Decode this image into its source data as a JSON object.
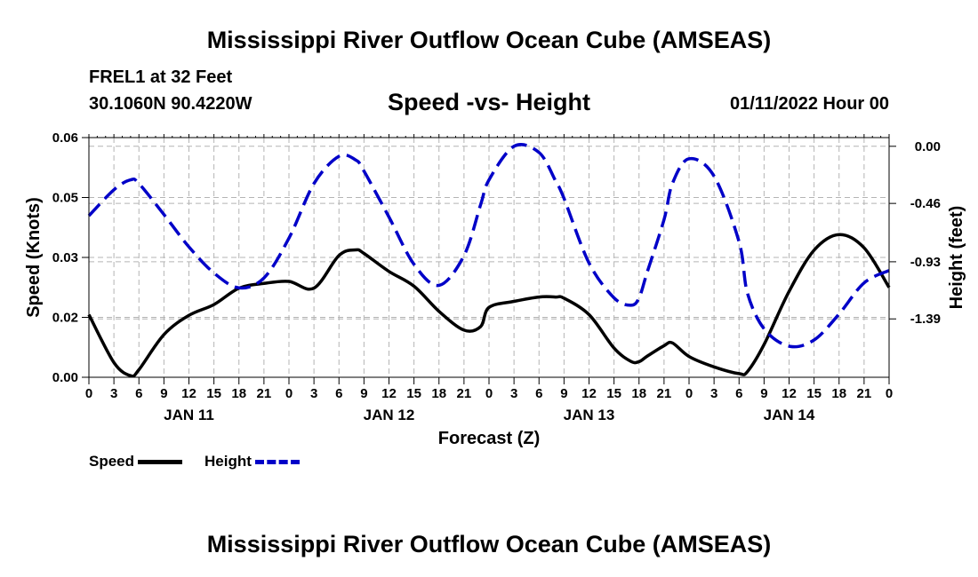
{
  "header": {
    "title": "Mississippi River Outflow Ocean Cube (AMSEAS)",
    "station": "FREL1 at 32 Feet",
    "coords": "30.1060N  90.4220W",
    "subtitle": "Speed -vs- Height",
    "datetime": "01/11/2022 Hour 00"
  },
  "footer": {
    "title": "Mississippi River Outflow Ocean Cube (AMSEAS)"
  },
  "colors": {
    "speed": "#000000",
    "height": "#0000c8",
    "grid": "#b4b4b4"
  },
  "chart_data": {
    "type": "line",
    "title": "Speed -vs- Height",
    "xlabel": "Forecast (Z)",
    "ylabel": "Speed (Knots)",
    "y2label": "Height (feet)",
    "x_range": [
      0,
      96
    ],
    "ylim": [
      0,
      0.06
    ],
    "y2lim": [
      -1.86,
      0.07
    ],
    "xticks": [
      {
        "x": 0,
        "label": "0"
      },
      {
        "x": 3,
        "label": "3"
      },
      {
        "x": 6,
        "label": "6"
      },
      {
        "x": 9,
        "label": "9"
      },
      {
        "x": 12,
        "label": "12"
      },
      {
        "x": 15,
        "label": "15"
      },
      {
        "x": 18,
        "label": "18"
      },
      {
        "x": 21,
        "label": "21"
      },
      {
        "x": 24,
        "label": "0"
      },
      {
        "x": 27,
        "label": "3"
      },
      {
        "x": 30,
        "label": "6"
      },
      {
        "x": 33,
        "label": "9"
      },
      {
        "x": 36,
        "label": "12"
      },
      {
        "x": 39,
        "label": "15"
      },
      {
        "x": 42,
        "label": "18"
      },
      {
        "x": 45,
        "label": "21"
      },
      {
        "x": 48,
        "label": "0"
      },
      {
        "x": 51,
        "label": "3"
      },
      {
        "x": 54,
        "label": "6"
      },
      {
        "x": 57,
        "label": "9"
      },
      {
        "x": 60,
        "label": "12"
      },
      {
        "x": 63,
        "label": "15"
      },
      {
        "x": 66,
        "label": "18"
      },
      {
        "x": 69,
        "label": "21"
      },
      {
        "x": 72,
        "label": "0"
      },
      {
        "x": 75,
        "label": "3"
      },
      {
        "x": 78,
        "label": "6"
      },
      {
        "x": 81,
        "label": "9"
      },
      {
        "x": 84,
        "label": "12"
      },
      {
        "x": 87,
        "label": "15"
      },
      {
        "x": 90,
        "label": "18"
      },
      {
        "x": 93,
        "label": "21"
      },
      {
        "x": 96,
        "label": "0"
      }
    ],
    "day_labels": [
      {
        "x": 12,
        "label": "JAN 11"
      },
      {
        "x": 36,
        "label": "JAN 12"
      },
      {
        "x": 60,
        "label": "JAN 13"
      },
      {
        "x": 84,
        "label": "JAN 14"
      }
    ],
    "yticks": [
      {
        "v": 0.0,
        "label": "0.00"
      },
      {
        "v": 0.015,
        "label": "0.02"
      },
      {
        "v": 0.03,
        "label": "0.03"
      },
      {
        "v": 0.045,
        "label": "0.05"
      },
      {
        "v": 0.06,
        "label": "0.06"
      }
    ],
    "y2ticks": [
      {
        "v": 0.0,
        "label": "0.00"
      },
      {
        "v": -0.46,
        "label": "-0.46"
      },
      {
        "v": -0.93,
        "label": "-0.93"
      },
      {
        "v": -1.39,
        "label": "-1.39"
      }
    ],
    "series": [
      {
        "name": "Speed",
        "axis": "left",
        "style": "solid",
        "x": [
          0,
          3,
          5,
          6,
          9,
          12,
          15,
          18,
          21,
          24,
          27,
          30,
          32,
          33,
          36,
          39,
          42,
          45,
          47,
          48,
          51,
          54,
          56,
          57,
          60,
          63,
          65,
          66,
          67,
          69,
          70,
          72,
          75,
          78,
          79,
          81,
          84,
          87,
          90,
          93,
          96
        ],
        "y": [
          0.0157,
          0.0037,
          0.0004,
          0.0019,
          0.0107,
          0.0155,
          0.0182,
          0.0223,
          0.0235,
          0.024,
          0.0223,
          0.0305,
          0.0319,
          0.031,
          0.0265,
          0.0228,
          0.0165,
          0.0118,
          0.0127,
          0.0175,
          0.019,
          0.0201,
          0.0201,
          0.0198,
          0.0157,
          0.0073,
          0.004,
          0.0039,
          0.0053,
          0.0079,
          0.0086,
          0.0052,
          0.0026,
          0.0009,
          0.0014,
          0.0082,
          0.0215,
          0.0318,
          0.0357,
          0.0324,
          0.0225
        ]
      },
      {
        "name": "Height",
        "axis": "right",
        "style": "dashed",
        "x": [
          0,
          3,
          5,
          6,
          9,
          12,
          15,
          18,
          21,
          24,
          27,
          30,
          32,
          33,
          36,
          39,
          42,
          45,
          47,
          48,
          51,
          54,
          56,
          57,
          60,
          63,
          65,
          66,
          67,
          69,
          70,
          72,
          75,
          78,
          79,
          81,
          84,
          87,
          90,
          93,
          96
        ],
        "y": [
          -0.56,
          -0.35,
          -0.27,
          -0.3,
          -0.55,
          -0.81,
          -1.02,
          -1.14,
          -1.06,
          -0.74,
          -0.3,
          -0.08,
          -0.11,
          -0.2,
          -0.57,
          -0.95,
          -1.12,
          -0.88,
          -0.47,
          -0.27,
          0.0,
          -0.05,
          -0.28,
          -0.42,
          -0.94,
          -1.22,
          -1.28,
          -1.22,
          -1.01,
          -0.59,
          -0.3,
          -0.1,
          -0.24,
          -0.77,
          -1.18,
          -1.47,
          -1.61,
          -1.56,
          -1.35,
          -1.1,
          -1.0
        ]
      }
    ],
    "legend": [
      {
        "label": "Speed",
        "style": "solid"
      },
      {
        "label": "Height",
        "style": "dashed"
      }
    ]
  }
}
